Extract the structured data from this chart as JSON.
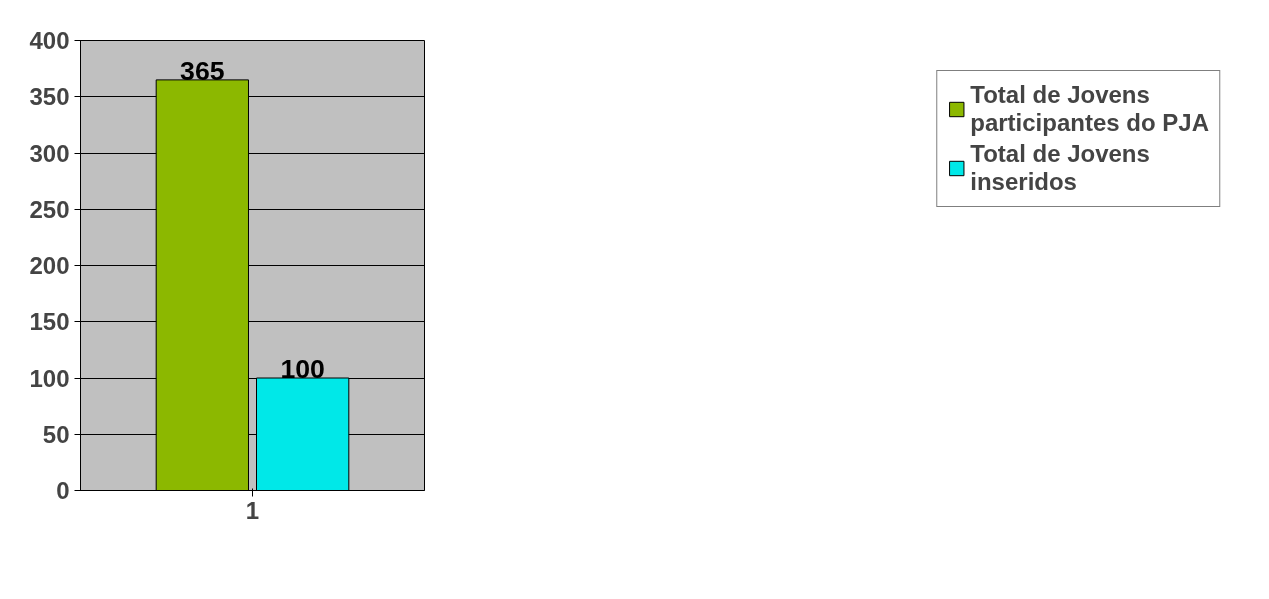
{
  "chart_data": {
    "type": "bar",
    "categories": [
      "1"
    ],
    "series": [
      {
        "name": "Total de Jovens participantes do PJA",
        "color": "#8cb800",
        "values": [
          365
        ]
      },
      {
        "name": "Total de Jovens inseridos",
        "color": "#00e8e8",
        "values": [
          100
        ]
      }
    ],
    "ylim": [
      0,
      400
    ],
    "yticks": [
      0,
      50,
      100,
      150,
      200,
      250,
      300,
      350,
      400
    ],
    "grid": "y",
    "legend": "right",
    "data_labels": true
  }
}
